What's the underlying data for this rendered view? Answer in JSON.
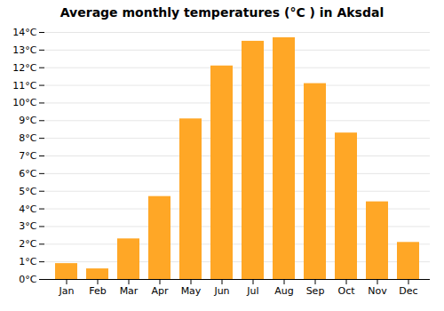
{
  "chart_data": {
    "type": "bar",
    "title": "Average monthly temperatures (°C ) in Aksdal",
    "categories": [
      "Jan",
      "Feb",
      "Mar",
      "Apr",
      "May",
      "Jun",
      "Jul",
      "Aug",
      "Sep",
      "Oct",
      "Nov",
      "Dec"
    ],
    "values": [
      0.9,
      0.6,
      2.3,
      4.7,
      9.1,
      12.1,
      13.5,
      13.7,
      11.1,
      8.3,
      4.4,
      2.1
    ],
    "color": "#FFA726",
    "ylim": [
      0,
      14
    ],
    "yticks": [
      {
        "value": 0,
        "label": "0°C"
      },
      {
        "value": 1,
        "label": "1°C"
      },
      {
        "value": 2,
        "label": "2°C"
      },
      {
        "value": 3,
        "label": "3°C"
      },
      {
        "value": 4,
        "label": "4°C"
      },
      {
        "value": 5,
        "label": "5°C"
      },
      {
        "value": 6,
        "label": "6°C"
      },
      {
        "value": 7,
        "label": "7°C"
      },
      {
        "value": 8,
        "label": "8°C"
      },
      {
        "value": 9,
        "label": "9°C"
      },
      {
        "value": 10,
        "label": "10°C"
      },
      {
        "value": 11,
        "label": "11°C"
      },
      {
        "value": 12,
        "label": "12°C"
      },
      {
        "value": 13,
        "label": "13°C"
      },
      {
        "value": 14,
        "label": "14°C"
      }
    ],
    "grid": true
  }
}
